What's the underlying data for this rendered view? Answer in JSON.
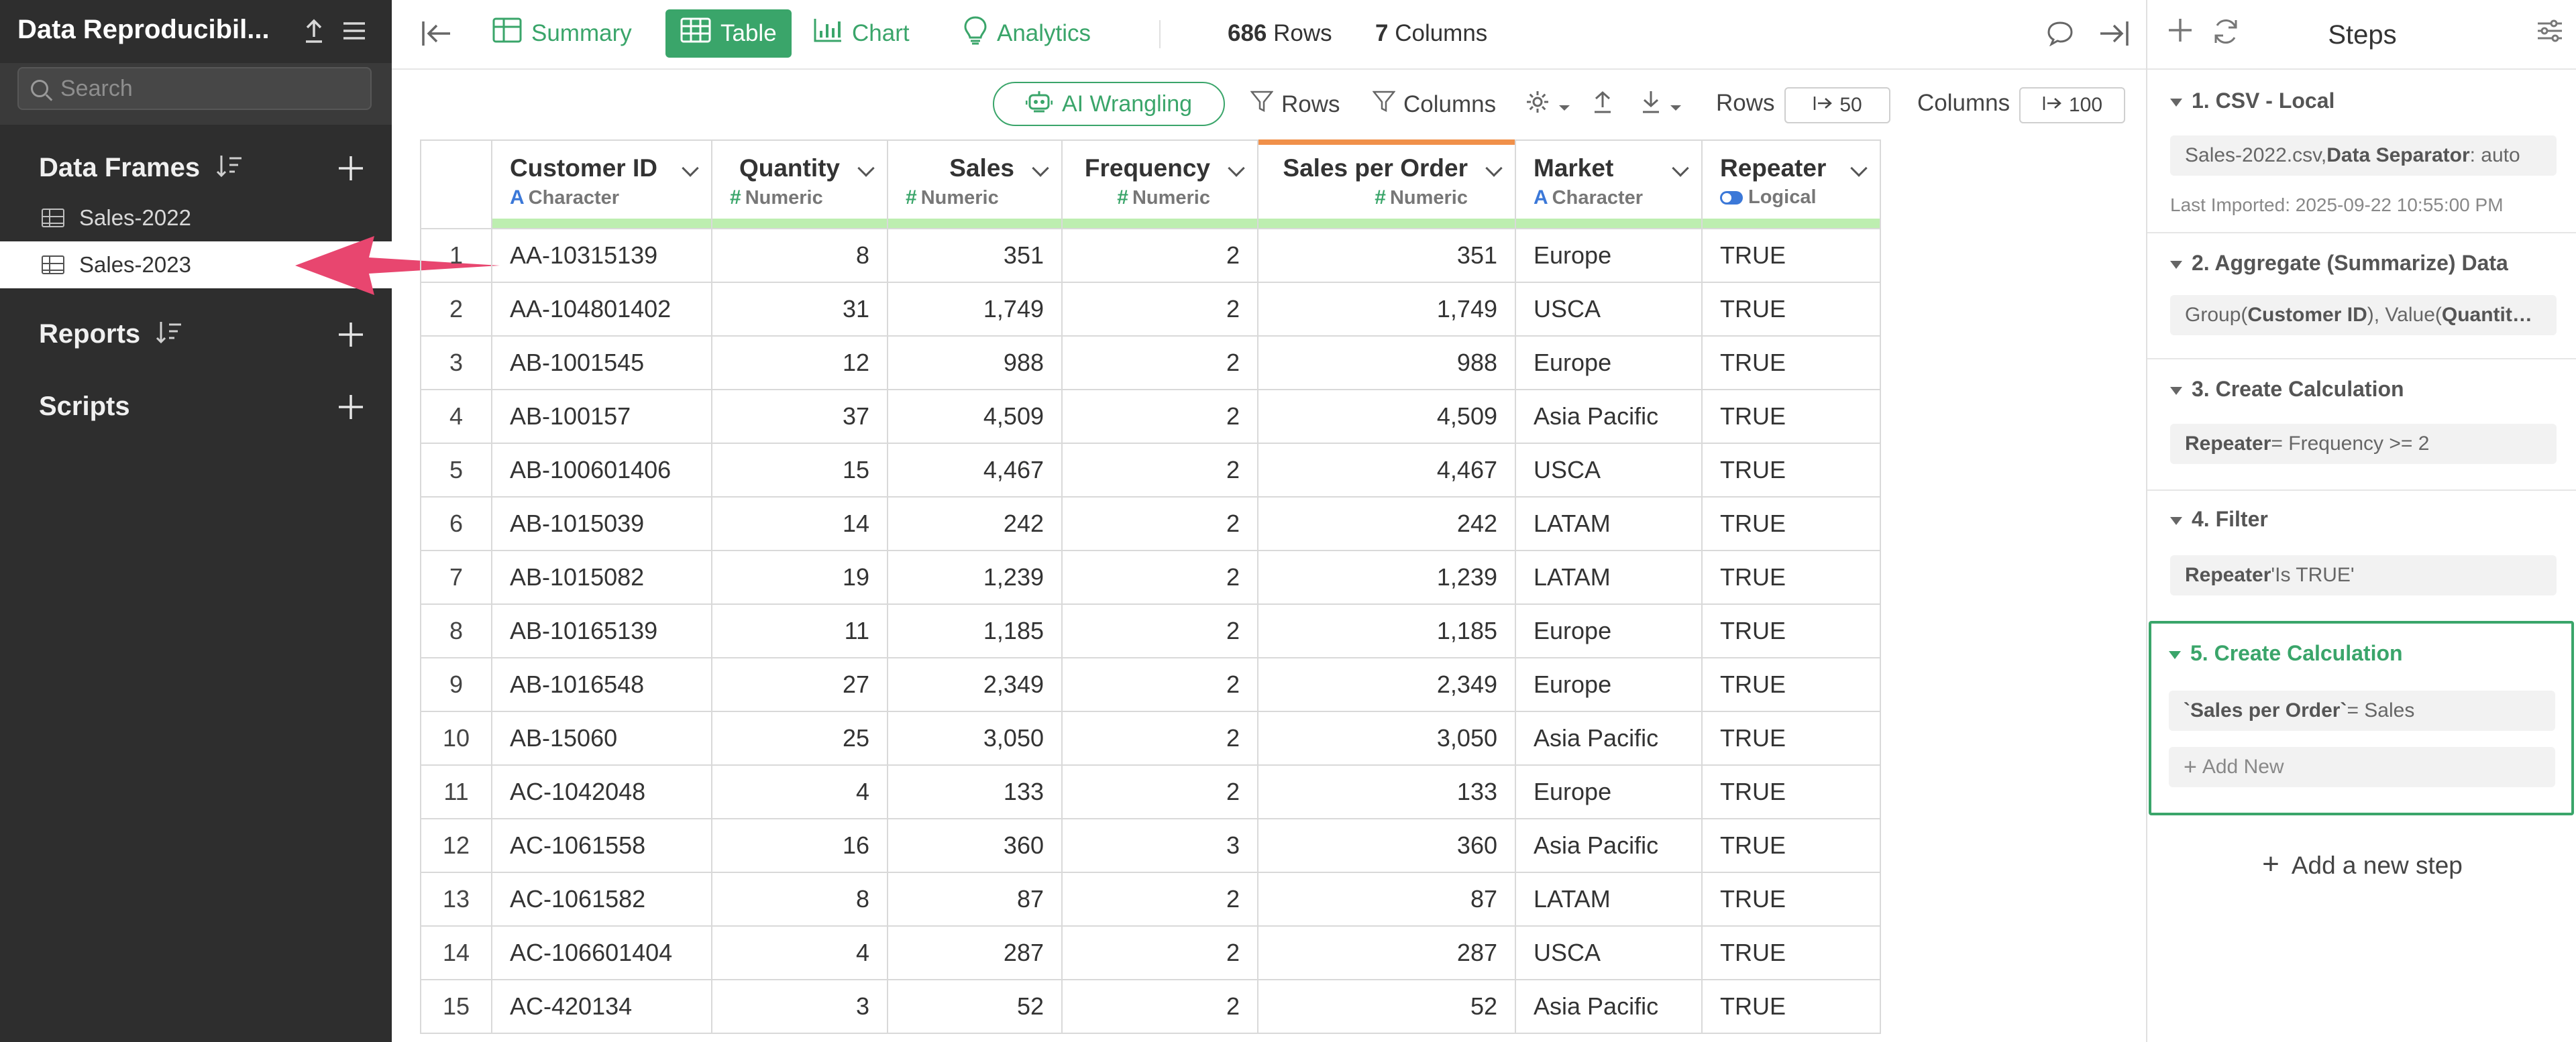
{
  "sidebar": {
    "title": "Data Reproducibil...",
    "search_placeholder": "Search",
    "data_frames_label": "Data Frames",
    "data_frames": [
      "Sales-2022",
      "Sales-2023"
    ],
    "reports_label": "Reports",
    "scripts_label": "Scripts",
    "active_item": "Sales-2023"
  },
  "topbar": {
    "tabs": [
      {
        "label": "Summary",
        "icon": "summary-icon"
      },
      {
        "label": "Table",
        "icon": "table-icon"
      },
      {
        "label": "Chart",
        "icon": "chart-icon"
      },
      {
        "label": "Analytics",
        "icon": "analytics-icon"
      }
    ],
    "active_tab": "Table",
    "rows_count": "686",
    "rows_label": "Rows",
    "columns_count": "7",
    "columns_label": "Columns"
  },
  "toolbar": {
    "ai_label": "AI Wrangling",
    "rows_filter_label": "Rows",
    "columns_filter_label": "Columns",
    "rows_label": "Rows",
    "rows_value": "50",
    "columns_label": "Columns",
    "columns_value": "100"
  },
  "table": {
    "columns": [
      {
        "name": "Customer ID",
        "type": "Character"
      },
      {
        "name": "Quantity",
        "type": "Numeric"
      },
      {
        "name": "Sales",
        "type": "Numeric"
      },
      {
        "name": "Frequency",
        "type": "Numeric"
      },
      {
        "name": "Sales per Order",
        "type": "Numeric"
      },
      {
        "name": "Market",
        "type": "Character"
      },
      {
        "name": "Repeater",
        "type": "Logical"
      }
    ],
    "rows": [
      [
        "1",
        "AA-10315139",
        "8",
        "351",
        "2",
        "351",
        "Europe",
        "TRUE"
      ],
      [
        "2",
        "AA-104801402",
        "31",
        "1,749",
        "2",
        "1,749",
        "USCA",
        "TRUE"
      ],
      [
        "3",
        "AB-1001545",
        "12",
        "988",
        "2",
        "988",
        "Europe",
        "TRUE"
      ],
      [
        "4",
        "AB-100157",
        "37",
        "4,509",
        "2",
        "4,509",
        "Asia Pacific",
        "TRUE"
      ],
      [
        "5",
        "AB-100601406",
        "15",
        "4,467",
        "2",
        "4,467",
        "USCA",
        "TRUE"
      ],
      [
        "6",
        "AB-1015039",
        "14",
        "242",
        "2",
        "242",
        "LATAM",
        "TRUE"
      ],
      [
        "7",
        "AB-1015082",
        "19",
        "1,239",
        "2",
        "1,239",
        "LATAM",
        "TRUE"
      ],
      [
        "8",
        "AB-10165139",
        "11",
        "1,185",
        "2",
        "1,185",
        "Europe",
        "TRUE"
      ],
      [
        "9",
        "AB-1016548",
        "27",
        "2,349",
        "2",
        "2,349",
        "Europe",
        "TRUE"
      ],
      [
        "10",
        "AB-15060",
        "25",
        "3,050",
        "2",
        "3,050",
        "Asia Pacific",
        "TRUE"
      ],
      [
        "11",
        "AC-1042048",
        "4",
        "133",
        "2",
        "133",
        "Europe",
        "TRUE"
      ],
      [
        "12",
        "AC-1061558",
        "16",
        "360",
        "3",
        "360",
        "Asia Pacific",
        "TRUE"
      ],
      [
        "13",
        "AC-1061582",
        "8",
        "87",
        "2",
        "87",
        "LATAM",
        "TRUE"
      ],
      [
        "14",
        "AC-106601404",
        "4",
        "287",
        "2",
        "287",
        "USCA",
        "TRUE"
      ],
      [
        "15",
        "AC-420134",
        "3",
        "52",
        "2",
        "52",
        "Asia Pacific",
        "TRUE"
      ]
    ]
  },
  "steps": {
    "title": "Steps",
    "items": [
      {
        "title": "1. CSV - Local",
        "detail_prefix": "Sales-2022.csv, ",
        "detail_bold": "Data Separator",
        "detail_suffix": ": auto",
        "meta": "Last Imported: 2025-09-22 10:55:00 PM"
      },
      {
        "title": "2. Aggregate (Summarize) Data",
        "detail_prefix": "Group(",
        "detail_bold": "Customer ID",
        "detail_suffix": "), Value(",
        "detail_bold2": "Quantit…"
      },
      {
        "title": "3. Create Calculation",
        "detail_bold": "Repeater",
        "detail_suffix": " = Frequency >= 2"
      },
      {
        "title": "4. Filter",
        "detail_bold": "Repeater",
        "detail_suffix": " 'Is TRUE'"
      },
      {
        "title": "5. Create Calculation",
        "detail_bold": "`Sales per Order`",
        "detail_suffix": " = Sales",
        "add_new": "Add New"
      }
    ],
    "add_step_label": "Add a new step"
  },
  "colors": {
    "accent_green": "#3aa56a",
    "sidebar_bg": "#2e2e2e",
    "arrow_pink": "#e8466f",
    "selected_column": "#f0904a"
  }
}
